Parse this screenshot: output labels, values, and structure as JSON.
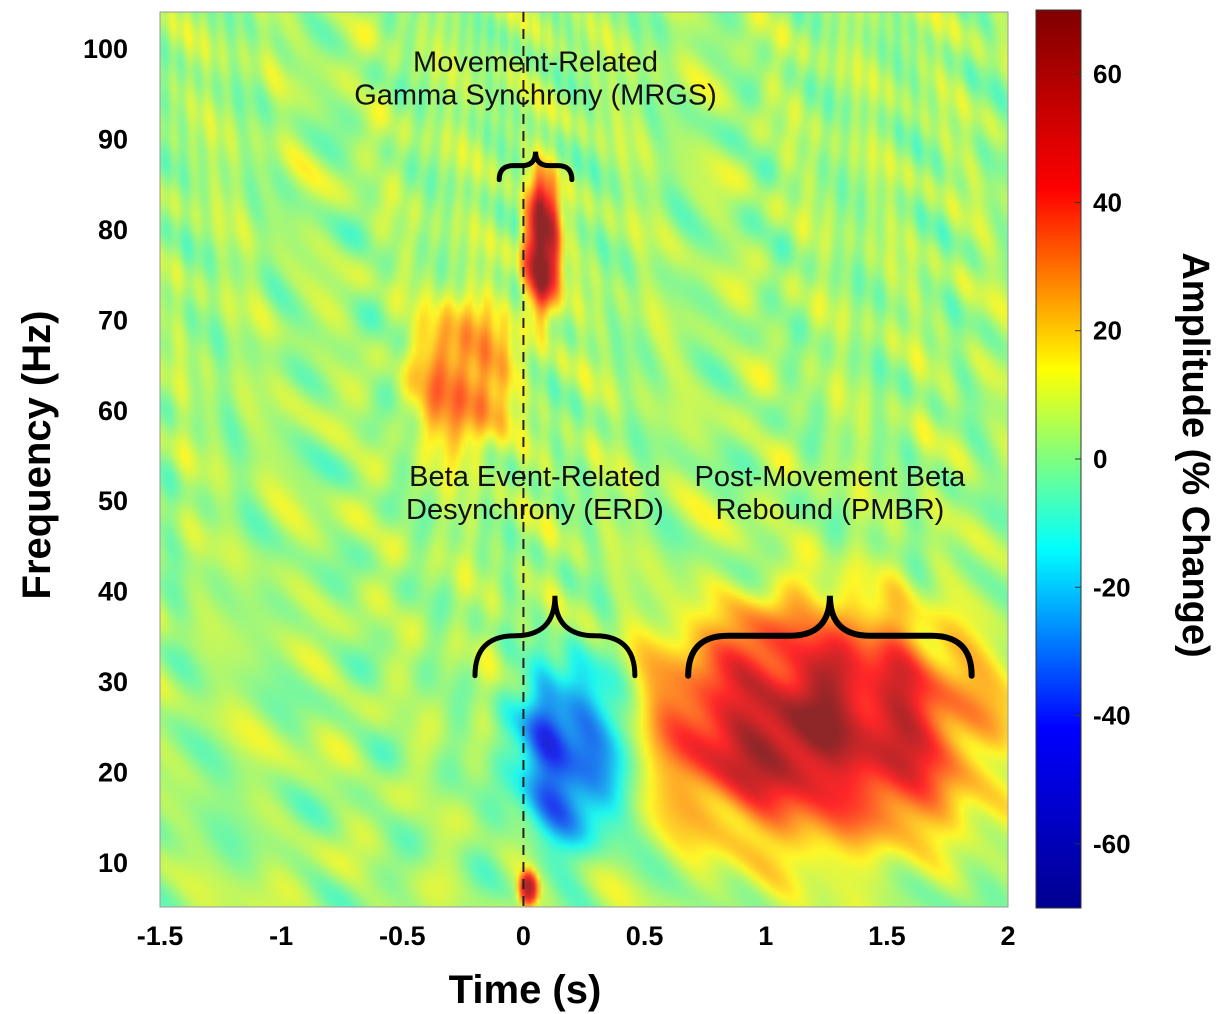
{
  "chart_data": {
    "type": "heatmap",
    "title": "",
    "xlabel": "Time (s)",
    "ylabel": "Frequency (Hz)",
    "colorbar_label": "Amplitude (% Change)",
    "xlim": [
      -1.5,
      2
    ],
    "ylim": [
      5,
      104
    ],
    "clim": [
      -70,
      70
    ],
    "x_ticks": [
      -1.5,
      -1,
      -0.5,
      0,
      0.5,
      1,
      1.5,
      2
    ],
    "x_tick_labels": [
      "-1.5",
      "-1",
      "-0.5",
      "0",
      "0.5",
      "1",
      "1.5",
      "2"
    ],
    "y_ticks": [
      10,
      20,
      30,
      40,
      50,
      60,
      70,
      80,
      90,
      100
    ],
    "y_tick_labels": [
      "10",
      "20",
      "30",
      "40",
      "50",
      "60",
      "70",
      "80",
      "90",
      "100"
    ],
    "colorbar_ticks": [
      60,
      40,
      20,
      0,
      -20,
      -40,
      -60
    ],
    "colorbar_tick_labels": [
      "60",
      "40",
      "20",
      "0",
      "-20",
      "-40",
      "-60"
    ],
    "colormap": "jet",
    "colormap_stops": [
      "#00008f",
      "#0000ff",
      "#00ffff",
      "#ffff00",
      "#ff0000",
      "#800000"
    ],
    "baseline_color": "#9fe6a8",
    "onset_line": {
      "x": 0,
      "style": "dashed"
    },
    "regions": [
      {
        "label": "Movement-Related Gamma Synchrony",
        "t_range": [
          0.0,
          0.15
        ],
        "f_range": [
          70,
          86
        ],
        "peak_amplitude": 70
      },
      {
        "label": "Beta Event-Related Desynchrony",
        "t_range": [
          -0.05,
          0.45
        ],
        "f_range": [
          12,
          32
        ],
        "peak_amplitude": -50
      },
      {
        "label": "Post-Movement Beta Rebound",
        "t_range": [
          0.5,
          1.9
        ],
        "f_range": [
          12,
          38
        ],
        "peak_amplitude": 60
      },
      {
        "label": "Low-frequency burst at onset",
        "t_range": [
          -0.02,
          0.06
        ],
        "f_range": [
          5,
          9
        ],
        "peak_amplitude": 55
      },
      {
        "label": "Pre-movement gamma streak",
        "t_range": [
          -0.45,
          -0.05
        ],
        "f_range": [
          55,
          72
        ],
        "peak_amplitude": 35
      }
    ],
    "annotations": [
      {
        "text_lines": [
          "Movement-Related",
          "Gamma Synchrony (MRGS)"
        ],
        "bracket_t_range": [
          -0.1,
          0.2
        ],
        "bracket_f": 87
      },
      {
        "text_lines": [
          "Beta Event-Related",
          "Desynchrony (ERD)"
        ],
        "bracket_t_range": [
          -0.2,
          0.46
        ],
        "bracket_f": 35
      },
      {
        "text_lines": [
          "Post-Movement Beta",
          "Rebound (PMBR)"
        ],
        "bracket_t_range": [
          0.68,
          1.85
        ],
        "bracket_f": 35
      }
    ]
  }
}
